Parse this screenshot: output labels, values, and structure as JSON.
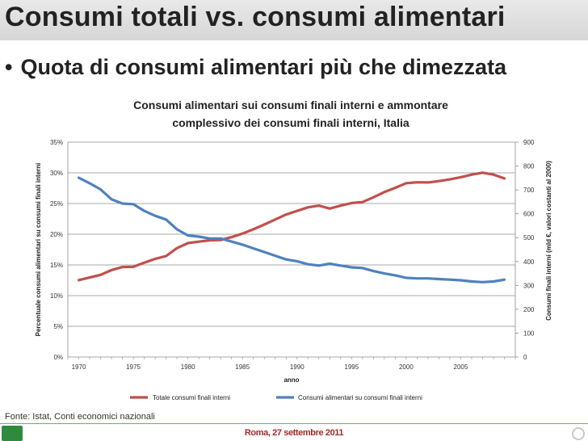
{
  "slide": {
    "title": "Consumi totali vs. consumi alimentari",
    "bullet": "Quota di consumi alimentari più che dimezzata",
    "source": "Fonte: Istat, Conti economici nazionali",
    "footer": "Roma, 27 settembre 2011"
  },
  "colors": {
    "total": "#c0504d",
    "food": "#4f81bd"
  },
  "chart_data": {
    "type": "line",
    "title": "Consumi alimentari sui consumi finali interni e ammontare complessivo dei consumi finali interni, Italia",
    "title_lines": [
      "Consumi alimentari sui consumi finali interni e ammontare",
      "complessivo dei consumi finali interni, Italia"
    ],
    "xlabel": "anno",
    "ylabel_left": "Percentuale consumi alimentari su consumi finali interni",
    "ylabel_right": "Consumi finali interni (mld €, valori costanti al 2000)",
    "x": [
      1970,
      1971,
      1972,
      1973,
      1974,
      1975,
      1976,
      1977,
      1978,
      1979,
      1980,
      1981,
      1982,
      1983,
      1984,
      1985,
      1986,
      1987,
      1988,
      1989,
      1990,
      1991,
      1992,
      1993,
      1994,
      1995,
      1996,
      1997,
      1998,
      1999,
      2000,
      2001,
      2002,
      2003,
      2004,
      2005,
      2006,
      2007,
      2008,
      2009
    ],
    "xticks": [
      "1970",
      "1975",
      "1980",
      "1985",
      "1990",
      "1995",
      "2000",
      "2005"
    ],
    "xlim": [
      1969,
      2010
    ],
    "ylim_left": [
      0,
      0.35
    ],
    "yticks_left": [
      "0%",
      "5%",
      "10%",
      "15%",
      "20%",
      "25%",
      "30%",
      "35%"
    ],
    "ylim_right": [
      0,
      900
    ],
    "yticks_right": [
      "0",
      "100",
      "200",
      "300",
      "400",
      "500",
      "600",
      "700",
      "800",
      "900"
    ],
    "legend_position": "bottom",
    "series": [
      {
        "name": "Totale consumi finali interni",
        "axis": "right",
        "values": [
          322,
          333,
          344,
          364,
          377,
          378,
          395,
          411,
          423,
          456,
          477,
          483,
          489,
          490,
          502,
          517,
          535,
          555,
          576,
          597,
          612,
          627,
          634,
          622,
          634,
          645,
          649,
          669,
          691,
          709,
          728,
          732,
          731,
          737,
          744,
          753,
          764,
          772,
          764,
          748
        ]
      },
      {
        "name": "Consumi alimentari su consumi finali interni",
        "axis": "left",
        "values": [
          0.292,
          0.283,
          0.273,
          0.257,
          0.25,
          0.249,
          0.238,
          0.23,
          0.224,
          0.208,
          0.198,
          0.196,
          0.193,
          0.193,
          0.188,
          0.183,
          0.177,
          0.171,
          0.165,
          0.159,
          0.156,
          0.151,
          0.149,
          0.152,
          0.149,
          0.146,
          0.145,
          0.14,
          0.136,
          0.133,
          0.129,
          0.128,
          0.128,
          0.127,
          0.126,
          0.125,
          0.123,
          0.122,
          0.123,
          0.126
        ]
      }
    ]
  }
}
